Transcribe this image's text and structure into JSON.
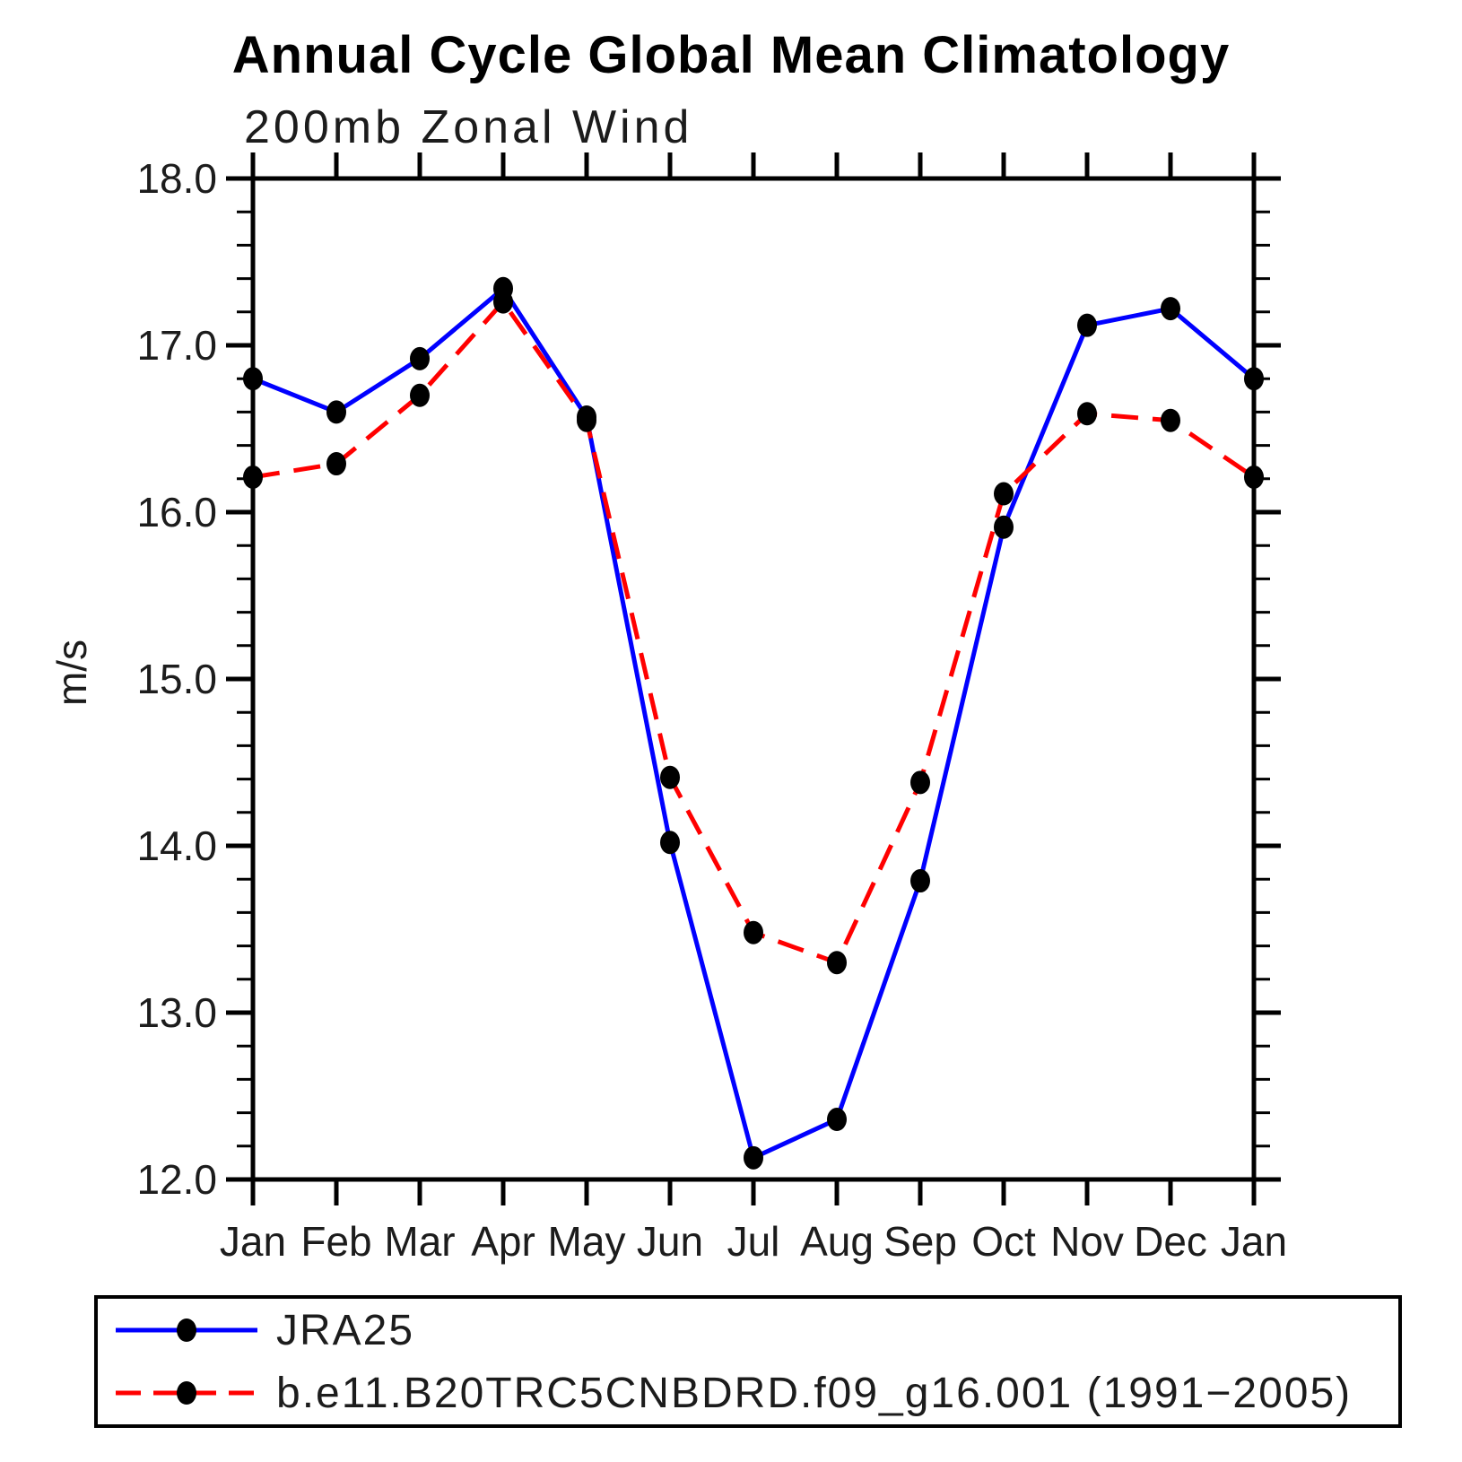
{
  "chart_data": {
    "type": "line",
    "title": "Annual Cycle Global Mean Climatology",
    "subtitle": "200mb Zonal Wind",
    "xlabel": "",
    "ylabel": "m/s",
    "categories": [
      "Jan",
      "Feb",
      "Mar",
      "Apr",
      "May",
      "Jun",
      "Jul",
      "Aug",
      "Sep",
      "Oct",
      "Nov",
      "Dec",
      "Jan"
    ],
    "series": [
      {
        "name": "JRA25",
        "color": "#0000ff",
        "line_style": "solid",
        "marker": "filled-circle",
        "marker_color": "#000000",
        "values": [
          16.8,
          16.6,
          16.92,
          17.34,
          16.57,
          14.02,
          12.13,
          12.36,
          13.79,
          15.91,
          17.12,
          17.22,
          16.8
        ]
      },
      {
        "name": "b.e11.B20TRC5CNBDRD.f09_g16.001 (1991−2005)",
        "color": "#ff0000",
        "line_style": "dashed",
        "marker": "filled-circle",
        "marker_color": "#000000",
        "values": [
          16.21,
          16.29,
          16.7,
          17.26,
          16.55,
          14.41,
          13.48,
          13.3,
          14.38,
          16.11,
          16.59,
          16.55,
          16.21
        ]
      }
    ],
    "ylim": [
      12.0,
      18.0
    ],
    "ytick_step": 1.0,
    "ytick_minor_step": 0.2,
    "ytick_labels": [
      "12.0",
      "13.0",
      "14.0",
      "15.0",
      "16.0",
      "17.0",
      "18.0"
    ],
    "grid": false,
    "legend_position": "bottom-left-box"
  }
}
